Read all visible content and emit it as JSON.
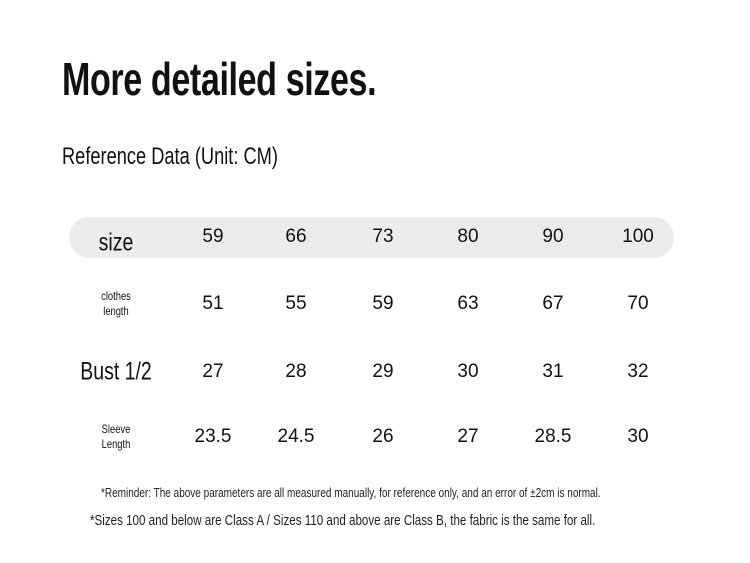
{
  "title": "More detailed sizes.",
  "subtitle": "Reference Data (Unit: CM)",
  "table": {
    "rows": [
      {
        "label": "size",
        "values": [
          "59",
          "66",
          "73",
          "80",
          "90",
          "100"
        ]
      },
      {
        "label": "clothes length",
        "label_lines": [
          "clothes",
          "length"
        ],
        "values": [
          "51",
          "55",
          "59",
          "63",
          "67",
          "70"
        ]
      },
      {
        "label": "Bust 1/2",
        "values": [
          "27",
          "28",
          "29",
          "30",
          "31",
          "32"
        ]
      },
      {
        "label": "Sleeve Length",
        "label_lines": [
          "Sleeve",
          "Length"
        ],
        "values": [
          "23.5",
          "24.5",
          "26",
          "27",
          "28.5",
          "30"
        ]
      }
    ]
  },
  "notes": {
    "reminder": "*Reminder: The above parameters are all measured manually, for reference only, and an error of ±2cm is normal.",
    "classes": "*Sizes 100 and below are Class A / Sizes 110 and above are Class B, the fabric is the same for all."
  },
  "colors": {
    "header_row_bg": "#ebebeb",
    "text": "#111111"
  }
}
